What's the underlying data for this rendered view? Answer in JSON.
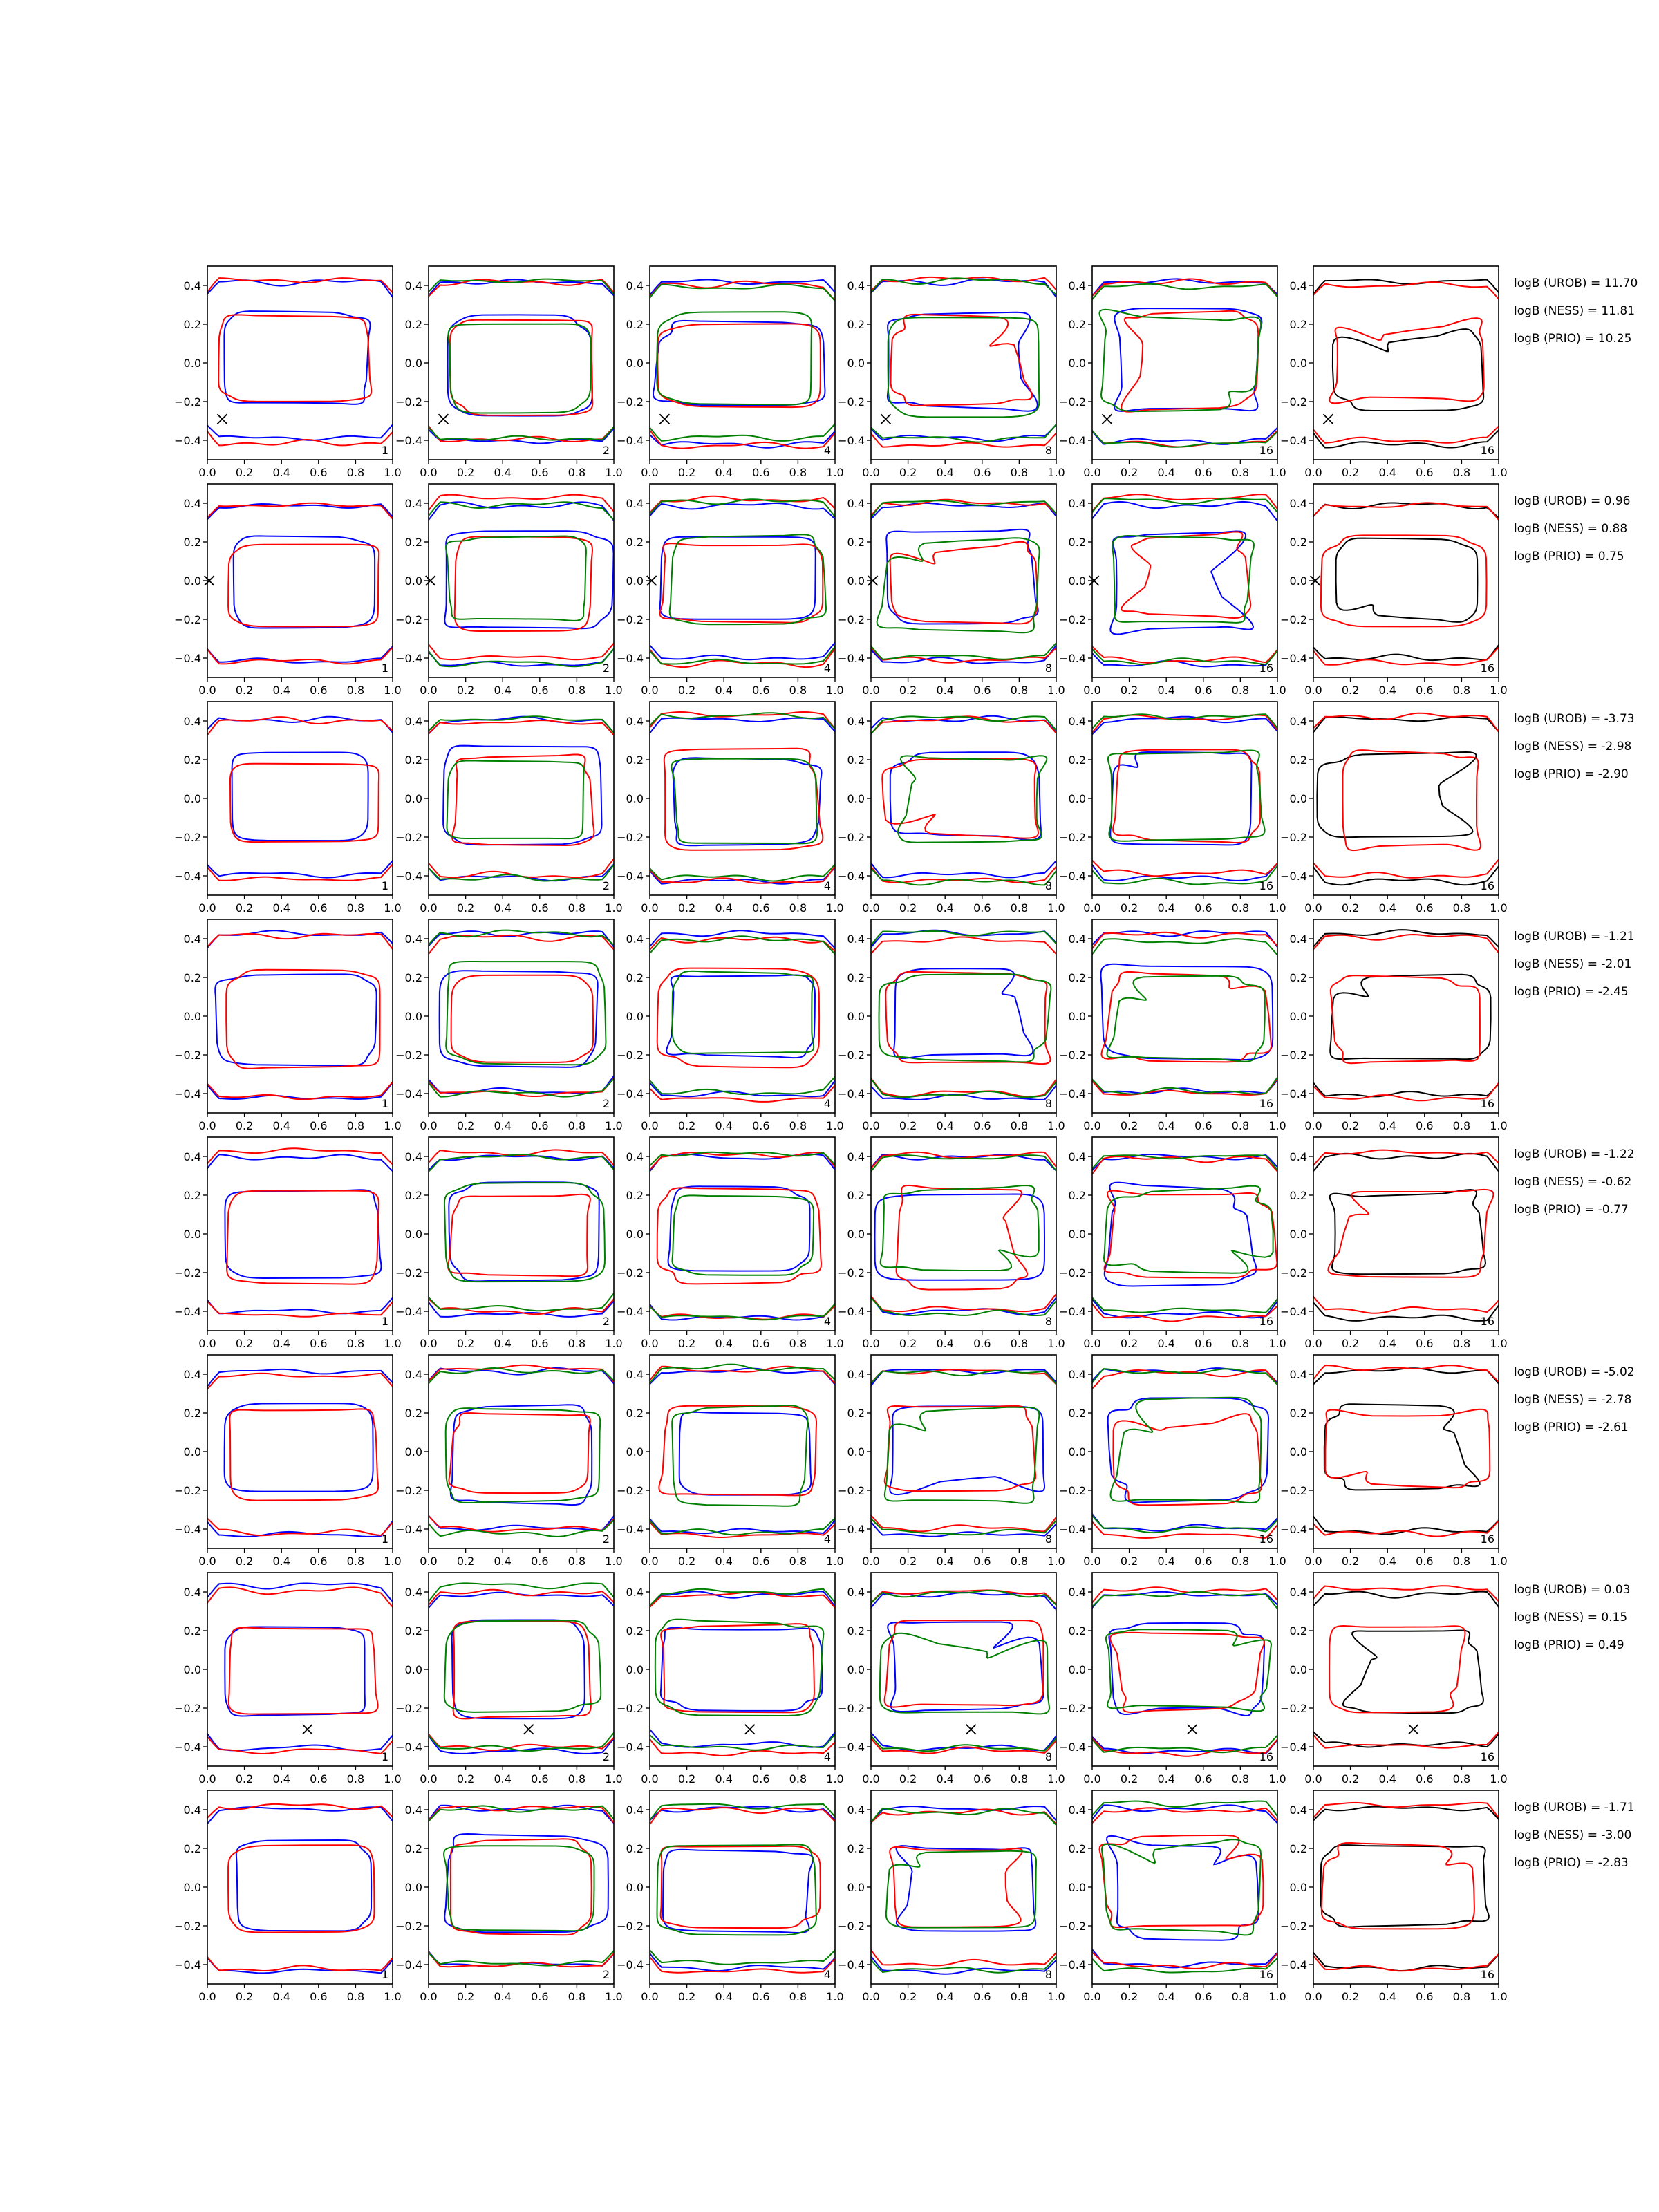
{
  "chart_data": {
    "type": "line",
    "title": "",
    "xlim": [
      0.0,
      1.0
    ],
    "ylim": [
      -0.5,
      0.5
    ],
    "x_ticks": [
      "0.0",
      "0.2",
      "0.4",
      "0.6",
      "0.8",
      "1.0"
    ],
    "y_ticks": [
      "0.4",
      "0.2",
      "0.0",
      "−0.2",
      "−0.4"
    ],
    "grid": false,
    "colors": {
      "blue": "#0000ff",
      "red": "#ff0000",
      "green": "#008000",
      "black": "#000000"
    },
    "panel_labels": [
      "1",
      "2",
      "4",
      "8",
      "16",
      "16"
    ],
    "rows": [
      {
        "marker": [
          0.08,
          -0.29
        ],
        "logB": [
          "logB (UROB) = 11.70",
          "logB (NESS) = 11.81",
          "logB (PRIO) = 10.25"
        ]
      },
      {
        "marker": [
          0.01,
          0.0
        ],
        "logB": [
          "logB (UROB) = 0.96",
          "logB (NESS) = 0.88",
          "logB (PRIO) = 0.75"
        ]
      },
      {
        "marker": null,
        "logB": [
          "logB (UROB) = -3.73",
          "logB (NESS) = -2.98",
          "logB (PRIO) = -2.90"
        ]
      },
      {
        "marker": null,
        "logB": [
          "logB (UROB) = -1.21",
          "logB (NESS) = -2.01",
          "logB (PRIO) = -2.45"
        ]
      },
      {
        "marker": null,
        "logB": [
          "logB (UROB) = -1.22",
          "logB (NESS) = -0.62",
          "logB (PRIO) = -0.77"
        ]
      },
      {
        "marker": null,
        "logB": [
          "logB (UROB) = -5.02",
          "logB (NESS) = -2.78",
          "logB (PRIO) = -2.61"
        ]
      },
      {
        "marker": [
          0.54,
          -0.31
        ],
        "logB": [
          "logB (UROB) = 0.03",
          "logB (NESS) = 0.15",
          "logB (PRIO) = 0.49"
        ]
      },
      {
        "marker": null,
        "logB": [
          "logB (UROB) = -1.71",
          "logB (NESS) = -3.00",
          "logB (PRIO) = -2.83"
        ]
      }
    ]
  }
}
